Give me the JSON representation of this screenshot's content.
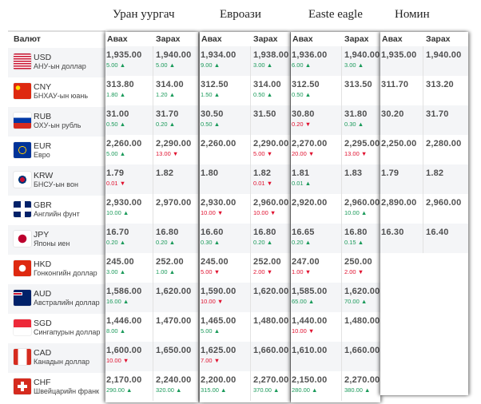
{
  "header": {
    "currency_label": "Валют",
    "buy_label": "Авах",
    "sell_label": "Зарах"
  },
  "banks": [
    "Уран уургач",
    "Евроази",
    "Easte eagle",
    "Номин"
  ],
  "colors": {
    "up": "#1a9a5a",
    "down": "#e0102e"
  },
  "currencies": [
    {
      "code": "USD",
      "name": "АНУ-ын доллар",
      "flag": "us-flag",
      "rates": [
        [
          {
            "v": "1,935.00",
            "c": "5.00",
            "d": "up"
          },
          {
            "v": "1,940.00",
            "c": "5.00",
            "d": "up"
          }
        ],
        [
          {
            "v": "1,934.00",
            "c": "9.00",
            "d": "up"
          },
          {
            "v": "1,938.00",
            "c": "3.00",
            "d": "up"
          }
        ],
        [
          {
            "v": "1,936.00",
            "c": "6.00",
            "d": "up"
          },
          {
            "v": "1,940.00",
            "c": "3.00",
            "d": "up"
          }
        ],
        [
          {
            "v": "1,935.00"
          },
          {
            "v": "1,940.00"
          }
        ]
      ]
    },
    {
      "code": "CNY",
      "name": "БНХАУ-ын юань",
      "flag": "cn-flag",
      "rates": [
        [
          {
            "v": "313.80",
            "c": "1.80",
            "d": "up"
          },
          {
            "v": "314.00",
            "c": "1.20",
            "d": "up"
          }
        ],
        [
          {
            "v": "312.50",
            "c": "1.50",
            "d": "up"
          },
          {
            "v": "314.00",
            "c": "0.50",
            "d": "up"
          }
        ],
        [
          {
            "v": "312.50",
            "c": "0.50",
            "d": "up"
          },
          {
            "v": "313.50"
          }
        ],
        [
          {
            "v": "311.70"
          },
          {
            "v": "313.20"
          }
        ]
      ]
    },
    {
      "code": "RUB",
      "name": "ОХУ-ын рубль",
      "flag": "ru-flag",
      "rates": [
        [
          {
            "v": "31.00",
            "c": "0.50",
            "d": "up"
          },
          {
            "v": "31.70",
            "c": "0.20",
            "d": "up"
          }
        ],
        [
          {
            "v": "30.50",
            "c": "0.50",
            "d": "up"
          },
          {
            "v": "31.50"
          }
        ],
        [
          {
            "v": "30.80",
            "c": "0.20",
            "d": "dn"
          },
          {
            "v": "31.80",
            "c": "0.30",
            "d": "up"
          }
        ],
        [
          {
            "v": "30.20"
          },
          {
            "v": "31.70"
          }
        ]
      ]
    },
    {
      "code": "EUR",
      "name": "Евро",
      "flag": "eu-flag",
      "rates": [
        [
          {
            "v": "2,260.00",
            "c": "5.00",
            "d": "up"
          },
          {
            "v": "2,290.00",
            "c": "13.00",
            "d": "dn"
          }
        ],
        [
          {
            "v": "2,260.00"
          },
          {
            "v": "2,290.00",
            "c": "5.00",
            "d": "dn"
          }
        ],
        [
          {
            "v": "2,270.00",
            "c": "20.00",
            "d": "dn"
          },
          {
            "v": "2,295.00",
            "c": "13.00",
            "d": "dn"
          }
        ],
        [
          {
            "v": "2,250.00"
          },
          {
            "v": "2,280.00"
          }
        ]
      ]
    },
    {
      "code": "KRW",
      "name": "БНСУ-ын вон",
      "flag": "kr-flag",
      "rates": [
        [
          {
            "v": "1.79",
            "c": "0.01",
            "d": "dn"
          },
          {
            "v": "1.82"
          }
        ],
        [
          {
            "v": "1.80"
          },
          {
            "v": "1.82",
            "c": "0.01",
            "d": "dn"
          }
        ],
        [
          {
            "v": "1.81",
            "c": "0.01",
            "d": "up"
          },
          {
            "v": "1.83"
          }
        ],
        [
          {
            "v": "1.79"
          },
          {
            "v": "1.82"
          }
        ]
      ]
    },
    {
      "code": "GBR",
      "name": "Английн фунт",
      "flag": "gb-flag",
      "rates": [
        [
          {
            "v": "2,930.00",
            "c": "10.00",
            "d": "up"
          },
          {
            "v": "2,970.00"
          }
        ],
        [
          {
            "v": "2,930.00",
            "c": "10.00",
            "d": "dn"
          },
          {
            "v": "2,960.00",
            "c": "10.00",
            "d": "dn"
          }
        ],
        [
          {
            "v": "2,920.00"
          },
          {
            "v": "2,960.00",
            "c": "10.00",
            "d": "up"
          }
        ],
        [
          {
            "v": "2,890.00"
          },
          {
            "v": "2,960.00"
          }
        ]
      ]
    },
    {
      "code": "JPY",
      "name": "Японы иен",
      "flag": "jp-flag",
      "rates": [
        [
          {
            "v": "16.70",
            "c": "0.20",
            "d": "up"
          },
          {
            "v": "16.80",
            "c": "0.20",
            "d": "up"
          }
        ],
        [
          {
            "v": "16.60",
            "c": "0.30",
            "d": "up"
          },
          {
            "v": "16.80",
            "c": "0.20",
            "d": "up"
          }
        ],
        [
          {
            "v": "16.65",
            "c": "0.20",
            "d": "up"
          },
          {
            "v": "16.80",
            "c": "0.15",
            "d": "up"
          }
        ],
        [
          {
            "v": "16.30"
          },
          {
            "v": "16.40"
          }
        ]
      ]
    },
    {
      "code": "HKD",
      "name": "Гонконгийн доллар",
      "flag": "hk-flag",
      "rates": [
        [
          {
            "v": "245.00",
            "c": "3.00",
            "d": "up"
          },
          {
            "v": "252.00",
            "c": "1.00",
            "d": "up"
          }
        ],
        [
          {
            "v": "245.00",
            "c": "5.00",
            "d": "dn"
          },
          {
            "v": "252.00",
            "c": "2.00",
            "d": "dn"
          }
        ],
        [
          {
            "v": "247.00",
            "c": "1.00",
            "d": "dn"
          },
          {
            "v": "250.00",
            "c": "2.00",
            "d": "dn"
          }
        ]
      ]
    },
    {
      "code": "AUD",
      "name": "Австралийн доллар",
      "flag": "au-flag",
      "rates": [
        [
          {
            "v": "1,586.00",
            "c": "16.00",
            "d": "up"
          },
          {
            "v": "1,620.00"
          }
        ],
        [
          {
            "v": "1,590.00",
            "c": "10.00",
            "d": "dn"
          },
          {
            "v": "1,620.00"
          }
        ],
        [
          {
            "v": "1,585.00",
            "c": "65.00",
            "d": "up"
          },
          {
            "v": "1,620.00",
            "c": "70.00",
            "d": "up"
          }
        ]
      ]
    },
    {
      "code": "SGD",
      "name": "Сингапурын доллар",
      "flag": "sg-flag",
      "rates": [
        [
          {
            "v": "1,446.00",
            "c": "8.00",
            "d": "up"
          },
          {
            "v": "1,470.00"
          }
        ],
        [
          {
            "v": "1,465.00",
            "c": "5.00",
            "d": "up"
          },
          {
            "v": "1,480.00"
          }
        ],
        [
          {
            "v": "1,440.00",
            "c": "10.00",
            "d": "dn"
          },
          {
            "v": "1,480.00"
          }
        ]
      ]
    },
    {
      "code": "CAD",
      "name": "Канадын доллар",
      "flag": "ca-flag",
      "rates": [
        [
          {
            "v": "1,600.00",
            "c": "10.00",
            "d": "dn"
          },
          {
            "v": "1,650.00"
          }
        ],
        [
          {
            "v": "1,625.00",
            "c": "7.00",
            "d": "dn"
          },
          {
            "v": "1,660.00"
          }
        ],
        [
          {
            "v": "1,610.00"
          },
          {
            "v": "1,660.00"
          }
        ]
      ]
    },
    {
      "code": "CHF",
      "name": "Швейцарийн франк",
      "flag": "ch-flag",
      "rates": [
        [
          {
            "v": "2,170.00",
            "c": "290.00",
            "d": "up"
          },
          {
            "v": "2,240.00",
            "c": "320.00",
            "d": "up"
          }
        ],
        [
          {
            "v": "2,200.00",
            "c": "315.00",
            "d": "up"
          },
          {
            "v": "2,270.00",
            "c": "370.00",
            "d": "up"
          }
        ],
        [
          {
            "v": "2,150.00",
            "c": "280.00",
            "d": "up"
          },
          {
            "v": "2,270.00",
            "c": "380.00",
            "d": "up"
          }
        ]
      ]
    }
  ]
}
